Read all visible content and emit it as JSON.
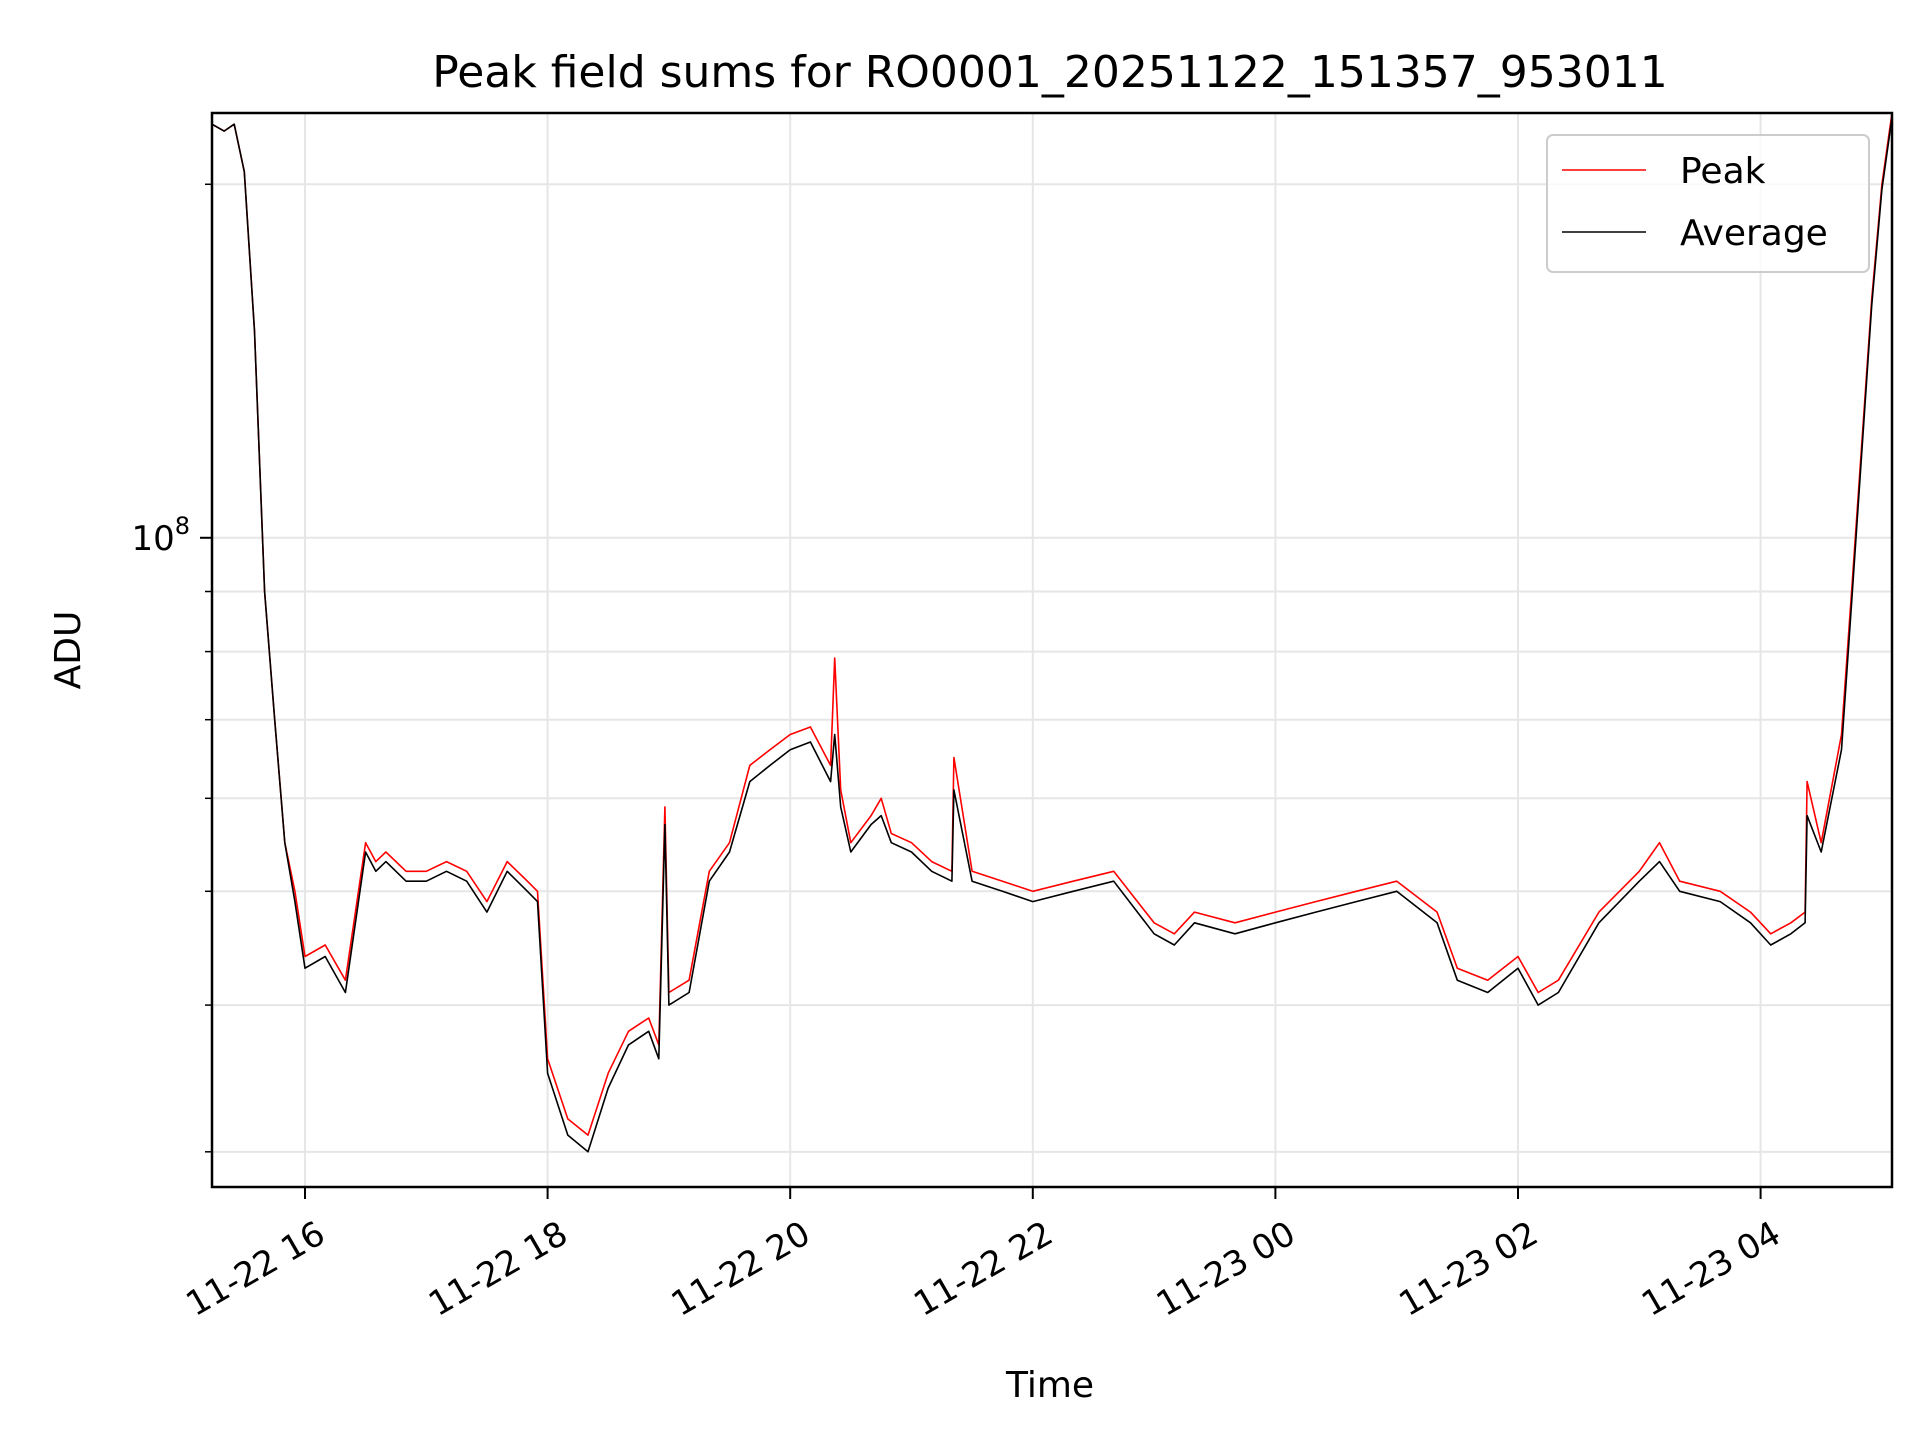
{
  "chart_data": {
    "type": "line",
    "title": "Peak field sums for RO0001_20251122_151357_953011",
    "xlabel": "Time",
    "ylabel": "ADU",
    "yscale": "log",
    "ylim": [
      28000000,
      230000000
    ],
    "xlim": [
      "2025-11-22 15:14",
      "2025-11-23 05:05"
    ],
    "grid": true,
    "legend_position": "top-right",
    "x_tick_labels": [
      "11-22 16",
      "11-22 18",
      "11-22 20",
      "11-22 22",
      "11-23 00",
      "11-23 02",
      "11-23 04"
    ],
    "x_ticks": [
      "2025-11-22 16:00",
      "2025-11-22 18:00",
      "2025-11-22 20:00",
      "2025-11-22 22:00",
      "2025-11-23 00:00",
      "2025-11-23 02:00",
      "2025-11-23 04:00"
    ],
    "y_tick_labels": [
      {
        "base": "10",
        "exp": "8",
        "value": 100000000
      }
    ],
    "series": [
      {
        "name": "Peak",
        "color": "#ff0000",
        "x": [
          "2025-11-22 15:14",
          "2025-11-22 15:20",
          "2025-11-22 15:25",
          "2025-11-22 15:30",
          "2025-11-22 15:35",
          "2025-11-22 15:40",
          "2025-11-22 15:45",
          "2025-11-22 15:50",
          "2025-11-22 15:55",
          "2025-11-22 16:00",
          "2025-11-22 16:10",
          "2025-11-22 16:20",
          "2025-11-22 16:30",
          "2025-11-22 16:35",
          "2025-11-22 16:40",
          "2025-11-22 16:50",
          "2025-11-22 17:00",
          "2025-11-22 17:10",
          "2025-11-22 17:20",
          "2025-11-22 17:30",
          "2025-11-22 17:40",
          "2025-11-22 17:50",
          "2025-11-22 17:55",
          "2025-11-22 18:00",
          "2025-11-22 18:10",
          "2025-11-22 18:20",
          "2025-11-22 18:30",
          "2025-11-22 18:40",
          "2025-11-22 18:50",
          "2025-11-22 18:55",
          "2025-11-22 18:58",
          "2025-11-22 19:00",
          "2025-11-22 19:10",
          "2025-11-22 19:20",
          "2025-11-22 19:30",
          "2025-11-22 19:40",
          "2025-11-22 19:50",
          "2025-11-22 20:00",
          "2025-11-22 20:10",
          "2025-11-22 20:20",
          "2025-11-22 20:22",
          "2025-11-22 20:25",
          "2025-11-22 20:30",
          "2025-11-22 20:40",
          "2025-11-22 20:45",
          "2025-11-22 20:50",
          "2025-11-22 21:00",
          "2025-11-22 21:10",
          "2025-11-22 21:20",
          "2025-11-22 21:21",
          "2025-11-22 21:30",
          "2025-11-22 21:45",
          "2025-11-22 22:00",
          "2025-11-22 22:20",
          "2025-11-22 22:40",
          "2025-11-22 23:00",
          "2025-11-22 23:10",
          "2025-11-22 23:20",
          "2025-11-22 23:40",
          "2025-11-23 00:00",
          "2025-11-23 00:20",
          "2025-11-23 00:40",
          "2025-11-23 01:00",
          "2025-11-23 01:20",
          "2025-11-23 01:30",
          "2025-11-23 01:45",
          "2025-11-23 02:00",
          "2025-11-23 02:10",
          "2025-11-23 02:20",
          "2025-11-23 02:40",
          "2025-11-23 03:00",
          "2025-11-23 03:10",
          "2025-11-23 03:20",
          "2025-11-23 03:40",
          "2025-11-23 03:55",
          "2025-11-23 04:05",
          "2025-11-23 04:15",
          "2025-11-23 04:22",
          "2025-11-23 04:23",
          "2025-11-23 04:30",
          "2025-11-23 04:40",
          "2025-11-23 04:45",
          "2025-11-23 04:50",
          "2025-11-23 04:55",
          "2025-11-23 05:00",
          "2025-11-23 05:05"
        ],
        "y": [
          225000000,
          222000000,
          225000000,
          205000000,
          150000000,
          90000000,
          70000000,
          55000000,
          50000000,
          44000000,
          45000000,
          42000000,
          55000000,
          53000000,
          54000000,
          52000000,
          52000000,
          53000000,
          52000000,
          49000000,
          53000000,
          51000000,
          50000000,
          36000000,
          32000000,
          31000000,
          35000000,
          38000000,
          39000000,
          37000000,
          59000000,
          41000000,
          42000000,
          52000000,
          55000000,
          64000000,
          66000000,
          68000000,
          69000000,
          64000000,
          79000000,
          61000000,
          55000000,
          58000000,
          60000000,
          56000000,
          55000000,
          53000000,
          52000000,
          65000000,
          52000000,
          51000000,
          50000000,
          51000000,
          52000000,
          47000000,
          46000000,
          48000000,
          47000000,
          48000000,
          49000000,
          50000000,
          51000000,
          48000000,
          43000000,
          42000000,
          44000000,
          41000000,
          42000000,
          48000000,
          52000000,
          55000000,
          51000000,
          50000000,
          48000000,
          46000000,
          47000000,
          48000000,
          62000000,
          55000000,
          68000000,
          90000000,
          120000000,
          160000000,
          200000000,
          230000000
        ]
      },
      {
        "name": "Average",
        "color": "#000000",
        "x": [
          "2025-11-22 15:14",
          "2025-11-22 15:20",
          "2025-11-22 15:25",
          "2025-11-22 15:30",
          "2025-11-22 15:35",
          "2025-11-22 15:40",
          "2025-11-22 15:45",
          "2025-11-22 15:50",
          "2025-11-22 15:55",
          "2025-11-22 16:00",
          "2025-11-22 16:10",
          "2025-11-22 16:20",
          "2025-11-22 16:30",
          "2025-11-22 16:35",
          "2025-11-22 16:40",
          "2025-11-22 16:50",
          "2025-11-22 17:00",
          "2025-11-22 17:10",
          "2025-11-22 17:20",
          "2025-11-22 17:30",
          "2025-11-22 17:40",
          "2025-11-22 17:50",
          "2025-11-22 17:55",
          "2025-11-22 18:00",
          "2025-11-22 18:10",
          "2025-11-22 18:20",
          "2025-11-22 18:30",
          "2025-11-22 18:40",
          "2025-11-22 18:50",
          "2025-11-22 18:55",
          "2025-11-22 18:58",
          "2025-11-22 19:00",
          "2025-11-22 19:10",
          "2025-11-22 19:20",
          "2025-11-22 19:30",
          "2025-11-22 19:40",
          "2025-11-22 19:50",
          "2025-11-22 20:00",
          "2025-11-22 20:10",
          "2025-11-22 20:20",
          "2025-11-22 20:22",
          "2025-11-22 20:25",
          "2025-11-22 20:30",
          "2025-11-22 20:40",
          "2025-11-22 20:45",
          "2025-11-22 20:50",
          "2025-11-22 21:00",
          "2025-11-22 21:10",
          "2025-11-22 21:20",
          "2025-11-22 21:21",
          "2025-11-22 21:30",
          "2025-11-22 21:45",
          "2025-11-22 22:00",
          "2025-11-22 22:20",
          "2025-11-22 22:40",
          "2025-11-22 23:00",
          "2025-11-22 23:10",
          "2025-11-22 23:20",
          "2025-11-22 23:40",
          "2025-11-23 00:00",
          "2025-11-23 00:20",
          "2025-11-23 00:40",
          "2025-11-23 01:00",
          "2025-11-23 01:20",
          "2025-11-23 01:30",
          "2025-11-23 01:45",
          "2025-11-23 02:00",
          "2025-11-23 02:10",
          "2025-11-23 02:20",
          "2025-11-23 02:40",
          "2025-11-23 03:00",
          "2025-11-23 03:10",
          "2025-11-23 03:20",
          "2025-11-23 03:40",
          "2025-11-23 03:55",
          "2025-11-23 04:05",
          "2025-11-23 04:15",
          "2025-11-23 04:22",
          "2025-11-23 04:23",
          "2025-11-23 04:30",
          "2025-11-23 04:40",
          "2025-11-23 04:45",
          "2025-11-23 04:50",
          "2025-11-23 04:55",
          "2025-11-23 05:00",
          "2025-11-23 05:05"
        ],
        "y": [
          225000000,
          222000000,
          225000000,
          205000000,
          150000000,
          90000000,
          70000000,
          55000000,
          49000000,
          43000000,
          44000000,
          41000000,
          54000000,
          52000000,
          53000000,
          51000000,
          51000000,
          52000000,
          51000000,
          48000000,
          52000000,
          50000000,
          49000000,
          35000000,
          31000000,
          30000000,
          34000000,
          37000000,
          38000000,
          36000000,
          57000000,
          40000000,
          41000000,
          51000000,
          54000000,
          62000000,
          64000000,
          66000000,
          67000000,
          62000000,
          68000000,
          59000000,
          54000000,
          57000000,
          58000000,
          55000000,
          54000000,
          52000000,
          51000000,
          61000000,
          51000000,
          50000000,
          49000000,
          50000000,
          51000000,
          46000000,
          45000000,
          47000000,
          46000000,
          47000000,
          48000000,
          49000000,
          50000000,
          47000000,
          42000000,
          41000000,
          43000000,
          40000000,
          41000000,
          47000000,
          51000000,
          53000000,
          50000000,
          49000000,
          47000000,
          45000000,
          46000000,
          47000000,
          58000000,
          54000000,
          66000000,
          88000000,
          118000000,
          158000000,
          198000000,
          228000000
        ]
      }
    ]
  }
}
